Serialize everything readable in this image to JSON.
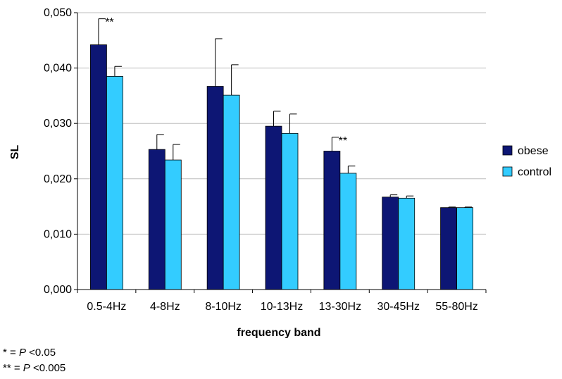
{
  "chart_data": {
    "type": "bar",
    "categories": [
      "0.5-4Hz",
      "4-8Hz",
      "8-10Hz",
      "10-13Hz",
      "13-30Hz",
      "30-45Hz",
      "55-80Hz"
    ],
    "series": [
      {
        "name": "obese",
        "color": "#0d1674",
        "values": [
          0.0442,
          0.0253,
          0.0367,
          0.0295,
          0.025,
          0.0167,
          0.0148
        ],
        "errors": [
          0.0047,
          0.0027,
          0.0086,
          0.0027,
          0.0025,
          0.0004,
          0.0001
        ]
      },
      {
        "name": "control",
        "color": "#33ccff",
        "values": [
          0.0385,
          0.0234,
          0.0351,
          0.0282,
          0.021,
          0.0165,
          0.0148
        ],
        "errors": [
          0.0018,
          0.0028,
          0.0055,
          0.0035,
          0.0013,
          0.0004,
          0.0001
        ]
      }
    ],
    "significance": [
      {
        "category_index": 0,
        "label": "**"
      },
      {
        "category_index": 4,
        "label": "**"
      }
    ],
    "ylim": [
      0,
      0.05
    ],
    "yticks": [
      "0,000",
      "0,010",
      "0,020",
      "0,030",
      "0,040",
      "0,050"
    ],
    "ytick_values": [
      0,
      0.01,
      0.02,
      0.03,
      0.04,
      0.05
    ],
    "xlabel": "frequency band",
    "ylabel": "SL",
    "grid": true,
    "legend_position": "right"
  },
  "footnotes": {
    "f1_prefix": "* = ",
    "f1_p": "P",
    "f1_suffix": " <0.05",
    "f2_prefix": "** = ",
    "f2_p": "P",
    "f2_suffix": " <0.005"
  }
}
